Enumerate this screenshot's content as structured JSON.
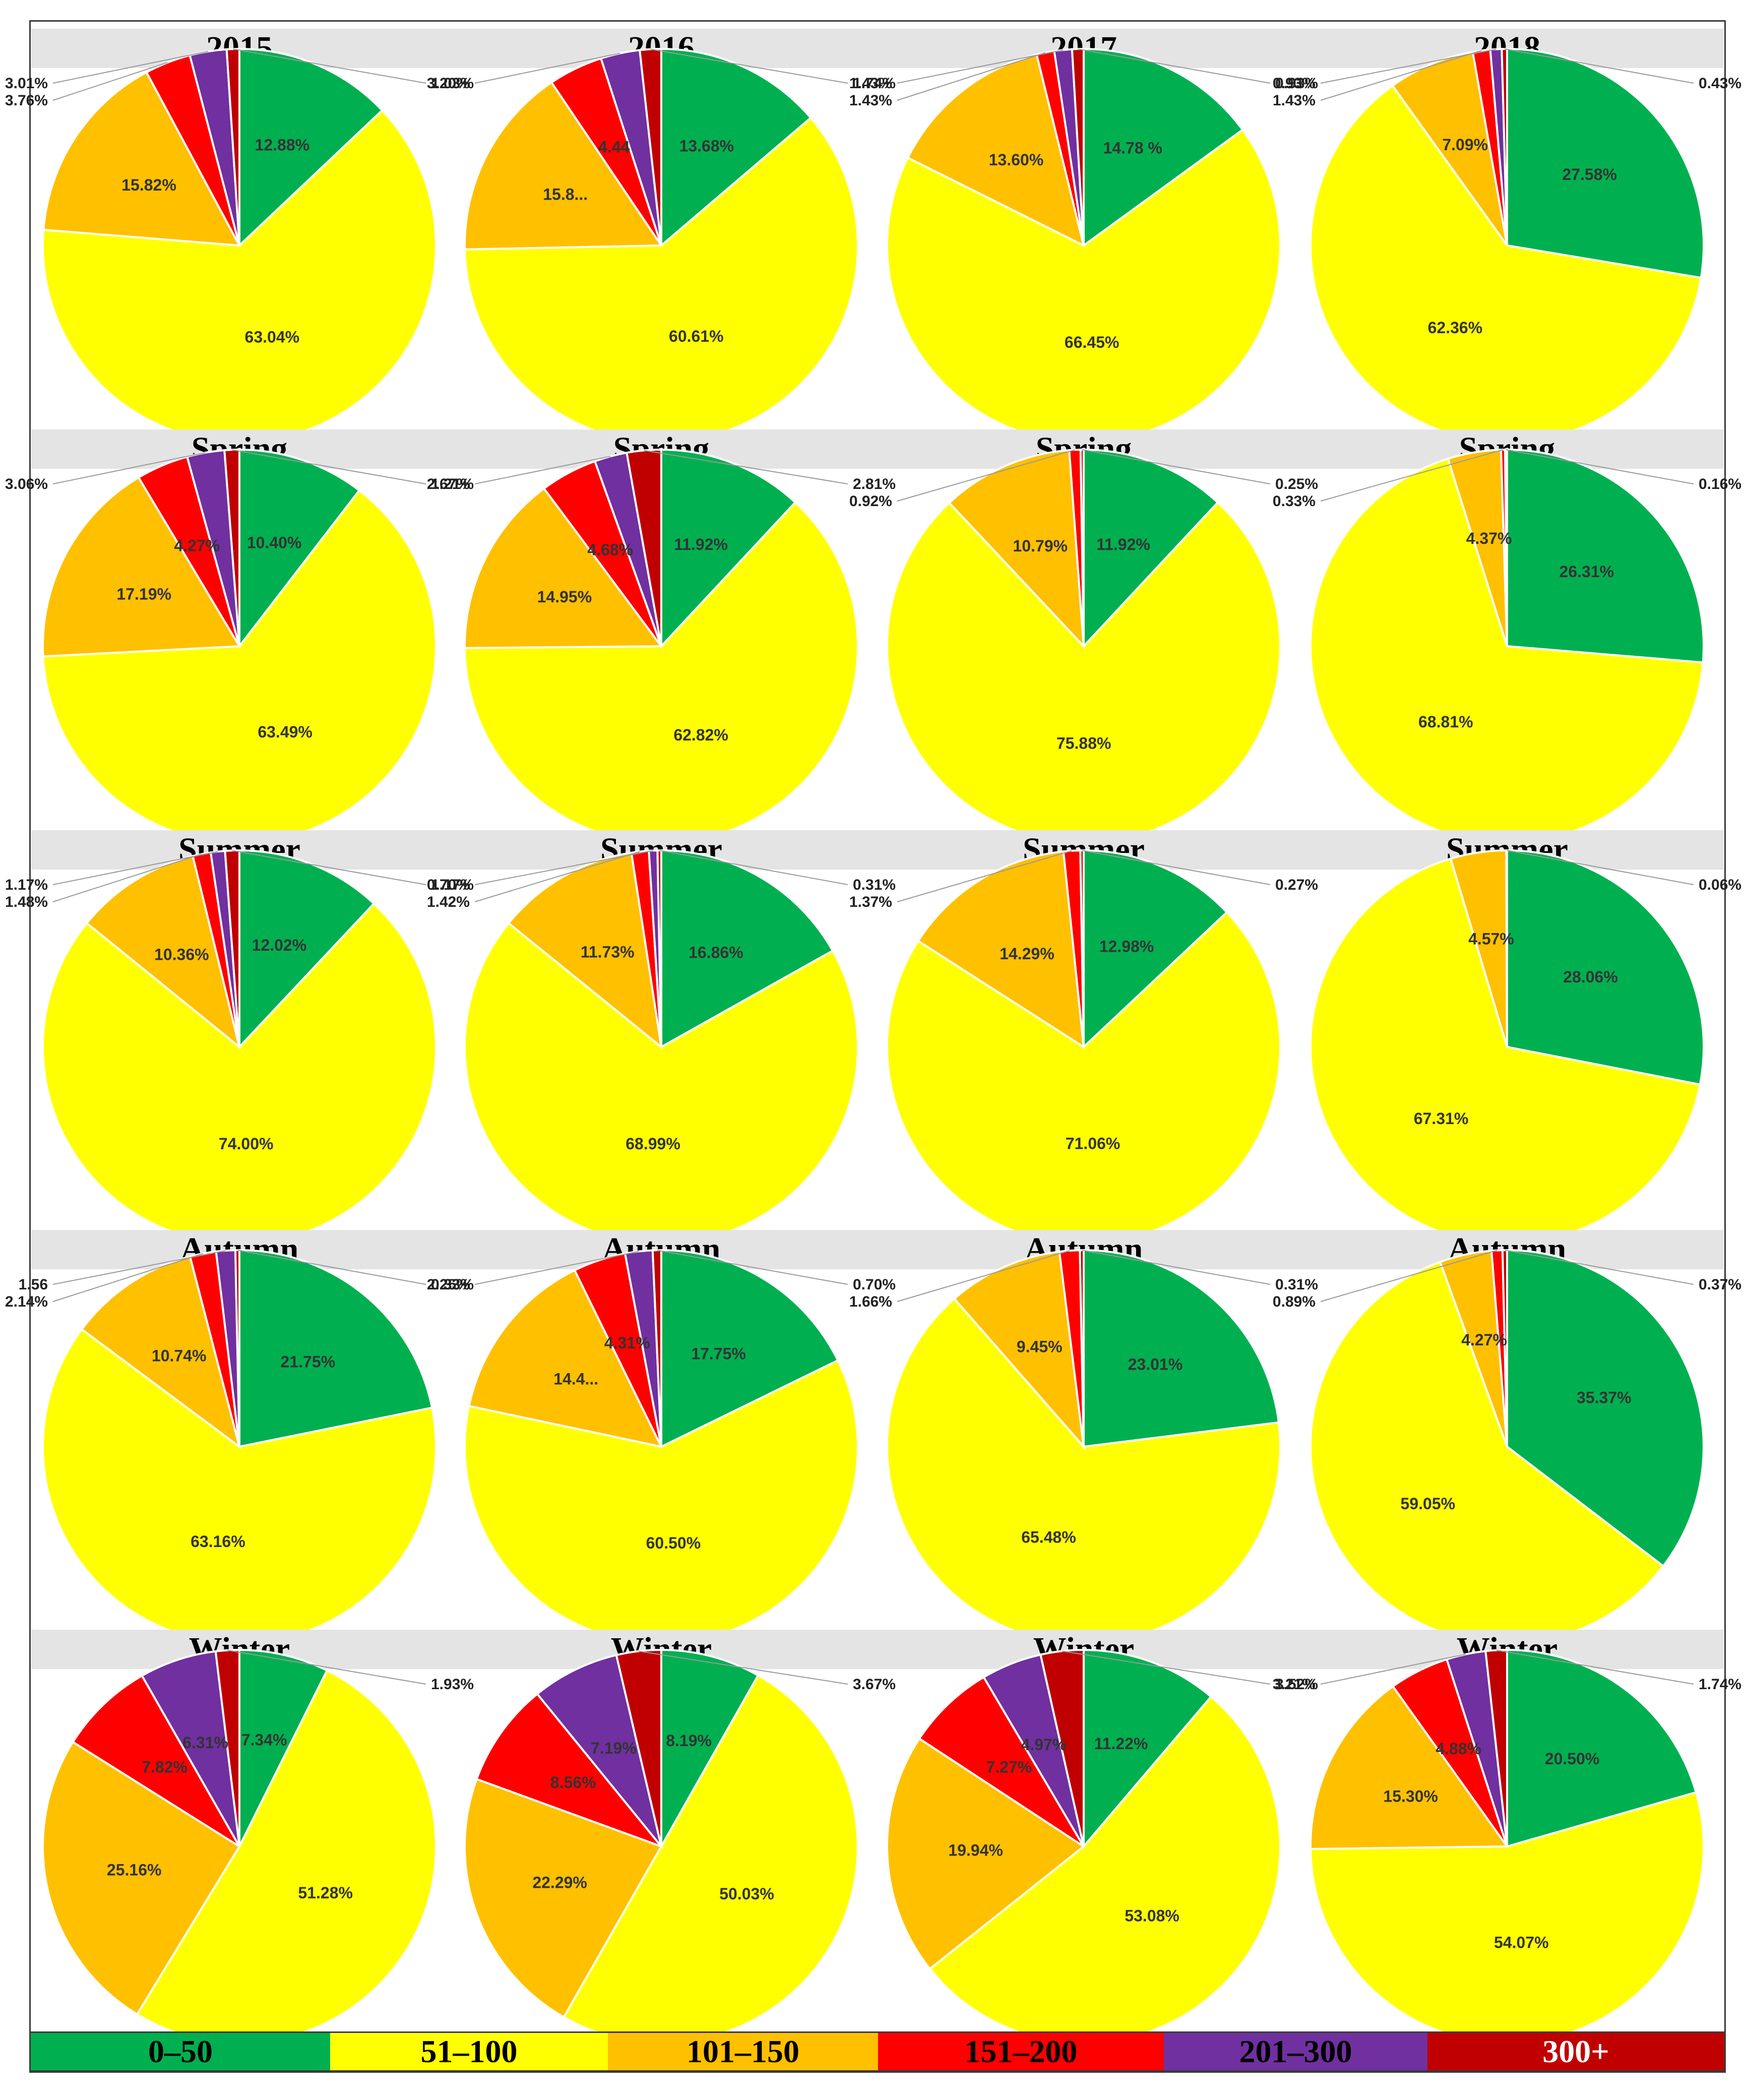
{
  "colors": [
    "#00b050",
    "#ffff00",
    "#ffc000",
    "#ff0000",
    "#7030a0",
    "#c00000"
  ],
  "legend": [
    {
      "label": "0–50",
      "color": "#00b050",
      "text_color": "#000000"
    },
    {
      "label": "51–100",
      "color": "#ffff00",
      "text_color": "#000000"
    },
    {
      "label": "101–150",
      "color": "#ffc000",
      "text_color": "#000000"
    },
    {
      "label": "151–200",
      "color": "#ff0000",
      "text_color": "#000000"
    },
    {
      "label": "201–300",
      "color": "#7030a0",
      "text_color": "#000000"
    },
    {
      "label": "300+",
      "color": "#c00000",
      "text_color": "#ffffff"
    }
  ],
  "chart_data": [
    {
      "type": "pie",
      "title": "2015",
      "categories": [
        "0–50",
        "51–100",
        "101–150",
        "151–200",
        "201–300",
        "300+"
      ],
      "values": [
        12.88,
        63.04,
        15.82,
        3.76,
        3.01,
        1.03
      ],
      "labels": [
        "12.88%",
        "63.04%",
        "15.82%",
        "3.76%",
        "3.01%",
        "1.03%"
      ]
    },
    {
      "type": "pie",
      "title": "2016",
      "categories": [
        "0–50",
        "51–100",
        "101–150",
        "151–200",
        "201–300",
        "300+"
      ],
      "values": [
        13.68,
        60.61,
        15.8,
        4.44,
        3.2,
        1.74
      ],
      "labels": [
        "13.68%",
        "60.61%",
        "15.8...",
        "4.44",
        "3.20%",
        "1.74%"
      ]
    },
    {
      "type": "pie",
      "title": "2017",
      "categories": [
        "0–50",
        "51–100",
        "101–150",
        "151–200",
        "201–300",
        "300+"
      ],
      "values": [
        14.78,
        66.45,
        13.6,
        1.43,
        1.43,
        0.93
      ],
      "labels": [
        "14.78 %",
        "66.45%",
        "13.60%",
        "1.43%",
        "1.43%",
        "0.93%"
      ]
    },
    {
      "type": "pie",
      "title": "2018",
      "categories": [
        "0–50",
        "51–100",
        "101–150",
        "151–200",
        "201–300",
        "300+"
      ],
      "values": [
        27.58,
        62.36,
        7.09,
        1.43,
        0.93,
        0.43
      ],
      "labels": [
        "27.58%",
        "62.36%",
        "7.09%",
        "1.43%",
        "0.93%",
        "0.43%"
      ]
    },
    {
      "type": "pie",
      "title": "Spring",
      "categories": [
        "0–50",
        "51–100",
        "101–150",
        "151–200",
        "201–300",
        "300+"
      ],
      "values": [
        10.4,
        63.49,
        17.19,
        4.27,
        3.06,
        1.21
      ],
      "labels": [
        "10.40%",
        "63.49%",
        "17.19%",
        "4.27%",
        "3.06%",
        "1.21%"
      ]
    },
    {
      "type": "pie",
      "title": "Spring",
      "categories": [
        "0–50",
        "51–100",
        "101–150",
        "151–200",
        "201–300",
        "300+"
      ],
      "values": [
        11.92,
        62.82,
        14.95,
        4.68,
        2.67,
        2.81
      ],
      "labels": [
        "11.92%",
        "62.82%",
        "14.95%",
        "4.68%",
        "2.67%",
        "2.81%"
      ]
    },
    {
      "type": "pie",
      "title": "Spring",
      "categories": [
        "0–50",
        "51–100",
        "101–150",
        "151–200",
        "201–300",
        "300+"
      ],
      "values": [
        11.92,
        75.88,
        10.79,
        0.92,
        0,
        0.25
      ],
      "labels": [
        "11.92%",
        "75.88%",
        "10.79%",
        "0.92%",
        "",
        "0.25%"
      ]
    },
    {
      "type": "pie",
      "title": "Spring",
      "categories": [
        "0–50",
        "51–100",
        "101–150",
        "151–200",
        "201–300",
        "300+"
      ],
      "values": [
        26.31,
        68.81,
        4.37,
        0.33,
        0,
        0.16
      ],
      "labels": [
        "26.31%",
        "68.81%",
        "4.37%",
        "0.33%",
        "",
        "0.16%"
      ]
    },
    {
      "type": "pie",
      "title": "Summer",
      "categories": [
        "0–50",
        "51–100",
        "101–150",
        "151–200",
        "201–300",
        "300+"
      ],
      "values": [
        12.02,
        74.0,
        10.36,
        1.48,
        1.17,
        1.17
      ],
      "labels": [
        "12.02%",
        "74.00%",
        "10.36%",
        "1.48%",
        "1.17%",
        "1.17%"
      ]
    },
    {
      "type": "pie",
      "title": "Summer",
      "categories": [
        "0–50",
        "51–100",
        "101–150",
        "151–200",
        "201–300",
        "300+"
      ],
      "values": [
        16.86,
        68.99,
        11.73,
        1.42,
        0.7,
        0.31
      ],
      "labels": [
        "16.86%",
        "68.99%",
        "11.73%",
        "1.42%",
        "0.70%",
        "0.31%"
      ]
    },
    {
      "type": "pie",
      "title": "Summer",
      "categories": [
        "0–50",
        "51–100",
        "101–150",
        "151–200",
        "201–300",
        "300+"
      ],
      "values": [
        12.98,
        71.06,
        14.29,
        1.37,
        0,
        0.27
      ],
      "labels": [
        "12.98%",
        "71.06%",
        "14.29%",
        "1.37%",
        "",
        "0.27%"
      ]
    },
    {
      "type": "pie",
      "title": "Summer",
      "categories": [
        "0–50",
        "51–100",
        "101–150",
        "151–200",
        "201–300",
        "300+"
      ],
      "values": [
        28.06,
        67.31,
        4.57,
        0,
        0,
        0.06
      ],
      "labels": [
        "28.06%",
        "67.31%",
        "4.57%",
        "",
        "",
        "0.06%"
      ]
    },
    {
      "type": "pie",
      "title": "Autumn",
      "categories": [
        "0–50",
        "51–100",
        "101–150",
        "151–200",
        "201–300",
        "300+"
      ],
      "values": [
        21.75,
        63.16,
        10.74,
        2.14,
        1.56,
        0.33
      ],
      "labels": [
        "21.75%",
        "63.16%",
        "10.74%",
        "2.14%",
        "1.56",
        "0.33%"
      ]
    },
    {
      "type": "pie",
      "title": "Autumn",
      "categories": [
        "0–50",
        "51–100",
        "101–150",
        "151–200",
        "201–300",
        "300+"
      ],
      "values": [
        17.75,
        60.5,
        14.4,
        4.31,
        2.25,
        0.7
      ],
      "labels": [
        "17.75%",
        "60.50%",
        "14.4...",
        "4.31%",
        "2.25%",
        "0.70%"
      ]
    },
    {
      "type": "pie",
      "title": "Autumn",
      "categories": [
        "0–50",
        "51–100",
        "101–150",
        "151–200",
        "201–300",
        "300+"
      ],
      "values": [
        23.01,
        65.48,
        9.45,
        1.66,
        0,
        0.31
      ],
      "labels": [
        "23.01%",
        "65.48%",
        "9.45%",
        "1.66%",
        "",
        "0.31%"
      ]
    },
    {
      "type": "pie",
      "title": "Autumn",
      "categories": [
        "0–50",
        "51–100",
        "101–150",
        "151–200",
        "201–300",
        "300+"
      ],
      "values": [
        35.37,
        59.05,
        4.27,
        0.89,
        0,
        0.37
      ],
      "labels": [
        "35.37%",
        "59.05%",
        "4.27%",
        "0.89%",
        "",
        "0.37%"
      ]
    },
    {
      "type": "pie",
      "title": "Winter",
      "categories": [
        "0–50",
        "51–100",
        "101–150",
        "151–200",
        "201–300",
        "300+"
      ],
      "values": [
        7.34,
        51.28,
        25.16,
        7.82,
        6.31,
        1.93
      ],
      "labels": [
        "7.34%",
        "51.28%",
        "25.16%",
        "7.82%",
        "6.31%",
        "1.93%"
      ]
    },
    {
      "type": "pie",
      "title": "Winter",
      "categories": [
        "0–50",
        "51–100",
        "101–150",
        "151–200",
        "201–300",
        "300+"
      ],
      "values": [
        8.19,
        50.03,
        22.29,
        8.56,
        7.19,
        3.67
      ],
      "labels": [
        "8.19%",
        "50.03%",
        "22.29%",
        "8.56%",
        "7.19%",
        "3.67%"
      ]
    },
    {
      "type": "pie",
      "title": "Winter",
      "categories": [
        "0–50",
        "51–100",
        "101–150",
        "151–200",
        "201–300",
        "300+"
      ],
      "values": [
        11.22,
        53.08,
        19.94,
        7.27,
        4.97,
        3.52
      ],
      "labels": [
        "11.22%",
        "53.08%",
        "19.94%",
        "7.27%",
        "4.97%",
        "3.52%"
      ]
    },
    {
      "type": "pie",
      "title": "Winter",
      "categories": [
        "0–50",
        "51–100",
        "101–150",
        "151–200",
        "201–300",
        "300+"
      ],
      "values": [
        20.5,
        54.07,
        15.3,
        4.88,
        3.21,
        1.74
      ],
      "labels": [
        "20.50%",
        "54.07%",
        "15.30%",
        "4.88%",
        "3.21%",
        "1.74%"
      ]
    }
  ]
}
